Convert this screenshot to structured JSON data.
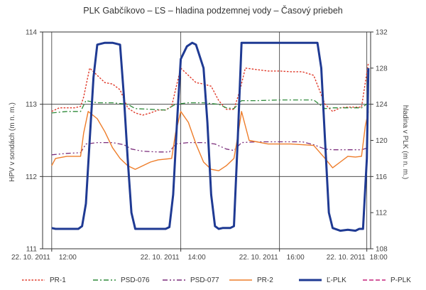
{
  "chart_data": {
    "type": "line",
    "title": "PLK Gabčíkovo – ĽS – hladina podzemnej vody – Časový priebeh",
    "ylabel_left": "HPV v sondách (m n. m.)",
    "ylabel_right": "hladina v PLK (m n. m.)",
    "ylim_left": [
      111,
      114
    ],
    "ylim_right": [
      108,
      132
    ],
    "yticks_left": [
      "111",
      "112",
      "113",
      "114"
    ],
    "yticks_right": [
      "108",
      "112",
      "116",
      "120",
      "124",
      "128",
      "132"
    ],
    "xlim": [
      "22. 10. 2011 10:48",
      "22. 10. 2011 18:00"
    ],
    "xtick_labels": [
      {
        "date": "22. 10. 2011",
        "time": "12:00",
        "x": "2011-10-22 11:00"
      },
      {
        "date": "22. 10. 2011",
        "time": "14:00",
        "x": "2011-10-22 13:50"
      },
      {
        "date": "22. 10. 2011",
        "time": "16:00",
        "x": "2011-10-22 16:00"
      },
      {
        "date": "22. 10. 2011",
        "time": "18:00",
        "x": "2011-10-22 17:55"
      }
    ],
    "grid": true,
    "legend_position": "bottom",
    "series": [
      {
        "name": "PR-1",
        "axis": "left",
        "color": "#e03a2a",
        "style": "dotted",
        "x": [
          "11:00",
          "11:10",
          "11:20",
          "11:30",
          "11:38",
          "11:42",
          "11:50",
          "12:00",
          "12:10",
          "12:20",
          "12:30",
          "12:40",
          "12:50",
          "13:00",
          "13:10",
          "13:20",
          "13:30",
          "13:38",
          "13:43",
          "13:50",
          "14:00",
          "14:10",
          "14:20",
          "14:30",
          "14:40",
          "14:50",
          "15:00",
          "15:08",
          "15:15",
          "15:30",
          "15:45",
          "16:00",
          "16:15",
          "16:30",
          "16:45",
          "17:00",
          "17:10",
          "17:20",
          "17:30",
          "17:40",
          "17:48",
          "17:53",
          "17:57"
        ],
        "y": [
          112.9,
          112.95,
          112.95,
          112.95,
          112.97,
          113.1,
          113.5,
          113.4,
          113.3,
          113.28,
          113.2,
          112.95,
          112.88,
          112.85,
          112.88,
          112.92,
          112.92,
          112.97,
          113.2,
          113.5,
          113.4,
          113.3,
          113.28,
          113.25,
          113.05,
          112.93,
          112.93,
          113.2,
          113.5,
          113.48,
          113.46,
          113.46,
          113.45,
          113.45,
          113.4,
          113.0,
          112.9,
          112.95,
          112.96,
          112.96,
          112.96,
          113.3,
          113.57
        ]
      },
      {
        "name": "PSD-076",
        "axis": "left",
        "color": "#2f8a3a",
        "style": "dashdot",
        "x": [
          "11:00",
          "11:20",
          "11:38",
          "11:45",
          "12:00",
          "12:20",
          "12:40",
          "12:50",
          "13:10",
          "13:30",
          "13:43",
          "14:00",
          "14:20",
          "14:40",
          "14:50",
          "15:00",
          "15:10",
          "15:30",
          "16:00",
          "16:30",
          "16:45",
          "17:00",
          "17:10",
          "17:30",
          "17:48",
          "17:57"
        ],
        "y": [
          112.88,
          112.9,
          112.9,
          113.05,
          113.02,
          113.02,
          113.0,
          112.94,
          112.93,
          112.92,
          113.0,
          113.02,
          113.02,
          113.0,
          112.95,
          112.94,
          113.05,
          113.05,
          113.06,
          113.06,
          113.06,
          112.94,
          112.95,
          112.95,
          112.95,
          113.02
        ]
      },
      {
        "name": "PSD-077",
        "axis": "left",
        "color": "#7b2d7b",
        "style": "dashdotdot",
        "x": [
          "11:00",
          "11:20",
          "11:38",
          "11:45",
          "12:00",
          "12:20",
          "12:35",
          "12:45",
          "13:00",
          "13:20",
          "13:35",
          "13:43",
          "14:00",
          "14:20",
          "14:35",
          "14:50",
          "15:00",
          "15:10",
          "15:30",
          "16:00",
          "16:30",
          "16:45",
          "17:00",
          "17:10",
          "17:30",
          "17:48",
          "17:57"
        ],
        "y": [
          112.3,
          112.32,
          112.33,
          112.45,
          112.47,
          112.47,
          112.44,
          112.38,
          112.35,
          112.34,
          112.34,
          112.45,
          112.47,
          112.47,
          112.45,
          112.38,
          112.36,
          112.47,
          112.48,
          112.48,
          112.48,
          112.44,
          112.38,
          112.37,
          112.37,
          112.37,
          112.4
        ]
      },
      {
        "name": "PR-2",
        "axis": "left",
        "color": "#ee7d2a",
        "style": "solid",
        "x": [
          "11:00",
          "11:05",
          "11:20",
          "11:38",
          "11:42",
          "11:48",
          "12:00",
          "12:10",
          "12:20",
          "12:30",
          "12:40",
          "12:50",
          "13:00",
          "13:10",
          "13:20",
          "13:38",
          "13:43",
          "13:50",
          "14:00",
          "14:10",
          "14:20",
          "14:30",
          "14:40",
          "14:50",
          "15:00",
          "15:05",
          "15:10",
          "15:20",
          "15:45",
          "16:15",
          "16:45",
          "17:00",
          "17:10",
          "17:20",
          "17:30",
          "17:40",
          "17:48",
          "17:53",
          "17:57"
        ],
        "y": [
          112.15,
          112.25,
          112.28,
          112.28,
          112.6,
          112.9,
          112.8,
          112.62,
          112.4,
          112.25,
          112.15,
          112.1,
          112.15,
          112.2,
          112.23,
          112.25,
          112.6,
          112.9,
          112.75,
          112.45,
          112.2,
          112.1,
          112.08,
          112.15,
          112.25,
          112.55,
          112.9,
          112.5,
          112.45,
          112.45,
          112.43,
          112.25,
          112.12,
          112.2,
          112.28,
          112.27,
          112.28,
          112.7,
          112.9
        ]
      },
      {
        "name": "Ľ-PLK",
        "axis": "right",
        "color": "#1f3a93",
        "style": "solid",
        "x": [
          "11:00",
          "11:05",
          "11:20",
          "11:35",
          "11:40",
          "11:45",
          "11:50",
          "11:55",
          "12:00",
          "12:10",
          "12:20",
          "12:30",
          "12:35",
          "12:40",
          "12:45",
          "12:50",
          "13:00",
          "13:20",
          "13:30",
          "13:35",
          "13:40",
          "13:45",
          "13:50",
          "13:58",
          "14:05",
          "14:10",
          "14:20",
          "14:25",
          "14:30",
          "14:35",
          "14:40",
          "14:45",
          "14:55",
          "15:00",
          "15:05",
          "15:10",
          "15:30",
          "16:00",
          "16:30",
          "16:50",
          "16:55",
          "17:00",
          "17:05",
          "17:10",
          "17:20",
          "17:30",
          "17:40",
          "17:45",
          "17:50",
          "17:55",
          "17:57"
        ],
        "y": [
          110.3,
          110.2,
          110.2,
          110.2,
          110.5,
          113.0,
          120.0,
          127.0,
          130.6,
          130.8,
          130.8,
          130.6,
          125.0,
          118.0,
          112.0,
          110.2,
          110.2,
          110.2,
          110.2,
          110.4,
          114.0,
          122.0,
          129.0,
          130.4,
          130.8,
          130.6,
          128.0,
          122.0,
          114.0,
          110.5,
          110.2,
          110.3,
          110.3,
          110.5,
          120.0,
          130.8,
          130.8,
          130.8,
          130.8,
          130.8,
          128.0,
          120.0,
          112.0,
          110.3,
          110.0,
          110.1,
          110.0,
          110.2,
          110.2,
          118.0,
          128.0
        ]
      },
      {
        "name": "P-PLK",
        "axis": "right",
        "color": "#c4247c",
        "style": "dashed",
        "x": [],
        "y": []
      }
    ]
  }
}
